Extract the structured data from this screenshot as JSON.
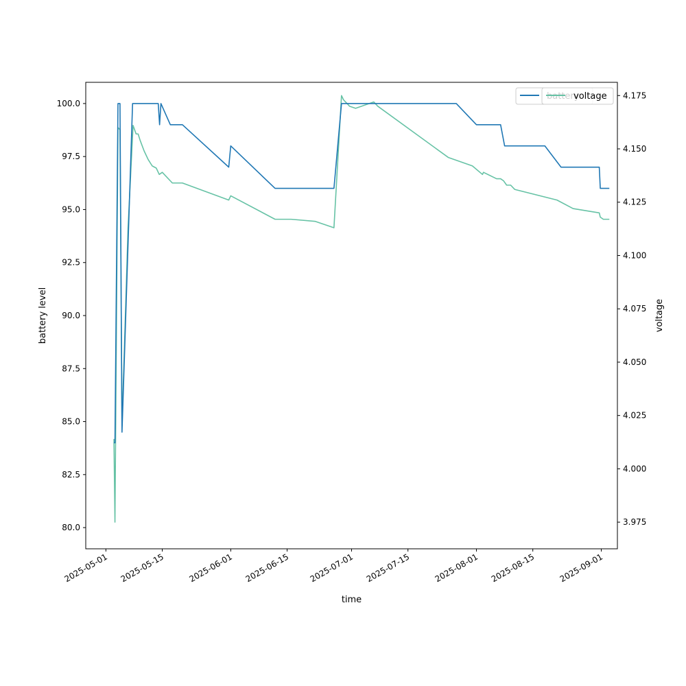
{
  "chart_data": {
    "type": "line",
    "xlabel": "time",
    "ylabel": "battery level",
    "y2label": "voltage",
    "xlim": [
      "2025-04-26",
      "2025-09-05"
    ],
    "ylim": [
      79.0,
      101.0
    ],
    "y2lim": [
      3.9625,
      4.1812
    ],
    "x_ticks": [
      "2025-05-01",
      "2025-05-15",
      "2025-06-01",
      "2025-06-15",
      "2025-07-01",
      "2025-07-15",
      "2025-08-01",
      "2025-08-15",
      "2025-09-01"
    ],
    "y_ticks": [
      80.0,
      82.5,
      85.0,
      87.5,
      90.0,
      92.5,
      95.0,
      97.5,
      100.0
    ],
    "y_tick_labels": [
      "80.0",
      "82.5",
      "85.0",
      "87.5",
      "90.0",
      "92.5",
      "95.0",
      "97.5",
      "100.0"
    ],
    "y2_ticks": [
      3.975,
      4.0,
      4.025,
      4.05,
      4.075,
      4.1,
      4.125,
      4.15,
      4.175
    ],
    "y2_tick_labels": [
      "3.975",
      "4.000",
      "4.025",
      "4.050",
      "4.075",
      "4.100",
      "4.125",
      "4.150",
      "4.175"
    ],
    "grid": false,
    "legend_position": "top-right",
    "series": [
      {
        "name": "battery",
        "axis": "left",
        "color": "#1f77b4",
        "points": [
          [
            "2025-05-03",
            84.0
          ],
          [
            "2025-05-03 06:00",
            84.0
          ],
          [
            "2025-05-04",
            100.0
          ],
          [
            "2025-05-04 12:00",
            100.0
          ],
          [
            "2025-05-05",
            84.5
          ],
          [
            "2025-05-07 15:00",
            100.0
          ],
          [
            "2025-05-14",
            100.0
          ],
          [
            "2025-05-14 08:00",
            99.0
          ],
          [
            "2025-05-14 16:00",
            100.0
          ],
          [
            "2025-05-17",
            99.0
          ],
          [
            "2025-05-20",
            99.0
          ],
          [
            "2025-05-31 12:00",
            97.0
          ],
          [
            "2025-06-01",
            98.0
          ],
          [
            "2025-06-12",
            96.0
          ],
          [
            "2025-06-26 15:00",
            96.0
          ],
          [
            "2025-06-28 12:00",
            100.0
          ],
          [
            "2025-07-27",
            100.0
          ],
          [
            "2025-08-01",
            99.0
          ],
          [
            "2025-08-07",
            99.0
          ],
          [
            "2025-08-08",
            98.0
          ],
          [
            "2025-08-18",
            98.0
          ],
          [
            "2025-08-22",
            97.0
          ],
          [
            "2025-08-31 12:00",
            97.0
          ],
          [
            "2025-08-31 18:00",
            96.0
          ],
          [
            "2025-09-03",
            96.0
          ]
        ]
      },
      {
        "name": "voltage",
        "axis": "right",
        "color": "#66c2a5",
        "points": [
          [
            "2025-05-03",
            4.014
          ],
          [
            "2025-05-03 06:00",
            3.975
          ],
          [
            "2025-05-04",
            4.16
          ],
          [
            "2025-05-04 12:00",
            4.159
          ],
          [
            "2025-05-05",
            4.02
          ],
          [
            "2025-05-06 12:00",
            4.113
          ],
          [
            "2025-05-07 18:00",
            4.161
          ],
          [
            "2025-05-08 12:00",
            4.157
          ],
          [
            "2025-05-09",
            4.157
          ],
          [
            "2025-05-09 12:00",
            4.154
          ],
          [
            "2025-05-10 12:00",
            4.149
          ],
          [
            "2025-05-11 12:00",
            4.145
          ],
          [
            "2025-05-12 12:00",
            4.142
          ],
          [
            "2025-05-13 12:00",
            4.141
          ],
          [
            "2025-05-14 06:00",
            4.138
          ],
          [
            "2025-05-15",
            4.139
          ],
          [
            "2025-05-17 12:00",
            4.134
          ],
          [
            "2025-05-20",
            4.134
          ],
          [
            "2025-05-31 12:00",
            4.126
          ],
          [
            "2025-06-01",
            4.128
          ],
          [
            "2025-06-12",
            4.117
          ],
          [
            "2025-06-16",
            4.117
          ],
          [
            "2025-06-22",
            4.116
          ],
          [
            "2025-06-26 15:00",
            4.113
          ],
          [
            "2025-06-28 12:00",
            4.175
          ],
          [
            "2025-06-29",
            4.173
          ],
          [
            "2025-06-30 12:00",
            4.17
          ],
          [
            "2025-07-02",
            4.169
          ],
          [
            "2025-07-06 12:00",
            4.172
          ],
          [
            "2025-07-07 12:00",
            4.17
          ],
          [
            "2025-07-25",
            4.146
          ],
          [
            "2025-07-31",
            4.142
          ],
          [
            "2025-08-02 12:00",
            4.138
          ],
          [
            "2025-08-02 18:00",
            4.139
          ],
          [
            "2025-08-06",
            4.136
          ],
          [
            "2025-08-07",
            4.136
          ],
          [
            "2025-08-07 18:00",
            4.135
          ],
          [
            "2025-08-08 12:00",
            4.133
          ],
          [
            "2025-08-09 12:00",
            4.133
          ],
          [
            "2025-08-10 12:00",
            4.131
          ],
          [
            "2025-08-21",
            4.126
          ],
          [
            "2025-08-25",
            4.122
          ],
          [
            "2025-08-31 12:00",
            4.12
          ],
          [
            "2025-08-31 18:00",
            4.118
          ],
          [
            "2025-09-01 12:00",
            4.117
          ],
          [
            "2025-09-03",
            4.117
          ]
        ]
      }
    ]
  }
}
